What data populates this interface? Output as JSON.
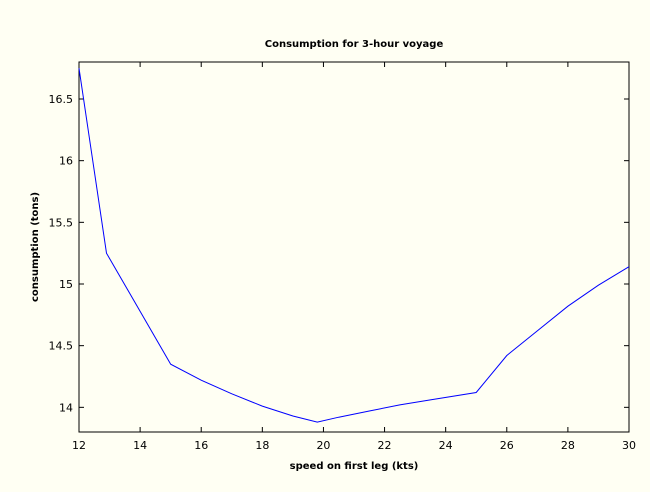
{
  "chart_data": {
    "type": "line",
    "title": "Consumption for 3-hour voyage",
    "xlabel": "speed on first leg (kts)",
    "ylabel": "consumption (tons)",
    "xlim": [
      12,
      30
    ],
    "ylim": [
      13.8,
      16.8
    ],
    "xticks": [
      12,
      14,
      16,
      18,
      20,
      22,
      24,
      26,
      28,
      30
    ],
    "yticks": [
      14,
      14.5,
      15,
      15.5,
      16,
      16.5
    ],
    "ytick_labels": [
      "14",
      "14.5",
      "15",
      "15.5",
      "16",
      "16.5"
    ],
    "grid": false,
    "series": [
      {
        "color": "#0000ff",
        "x": [
          12,
          12.9,
          15,
          16,
          17,
          18,
          19,
          19.8,
          20.5,
          21.5,
          22.5,
          23.5,
          25,
          26,
          27,
          28,
          29,
          30
        ],
        "y": [
          16.75,
          15.25,
          14.35,
          14.22,
          14.11,
          14.01,
          13.93,
          13.88,
          13.92,
          13.97,
          14.02,
          14.06,
          14.12,
          14.42,
          14.62,
          14.82,
          14.99,
          15.14
        ]
      }
    ]
  }
}
